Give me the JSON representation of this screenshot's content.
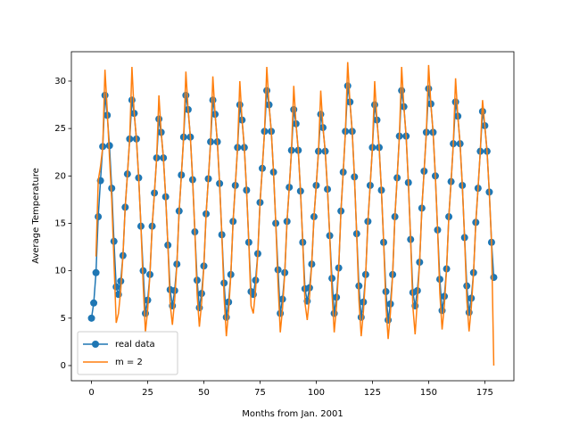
{
  "chart_data": {
    "type": "line",
    "xlabel": "Months from Jan. 2001",
    "ylabel": "Average Temperature",
    "x": [
      0,
      1,
      2,
      3,
      4,
      5,
      6,
      7,
      8,
      9,
      10,
      11,
      12,
      13,
      14,
      15,
      16,
      17,
      18,
      19,
      20,
      21,
      22,
      23,
      24,
      25,
      26,
      27,
      28,
      29,
      30,
      31,
      32,
      33,
      34,
      35,
      36,
      37,
      38,
      39,
      40,
      41,
      42,
      43,
      44,
      45,
      46,
      47,
      48,
      49,
      50,
      51,
      52,
      53,
      54,
      55,
      56,
      57,
      58,
      59,
      60,
      61,
      62,
      63,
      64,
      65,
      66,
      67,
      68,
      69,
      70,
      71,
      72,
      73,
      74,
      75,
      76,
      77,
      78,
      79,
      80,
      81,
      82,
      83,
      84,
      85,
      86,
      87,
      88,
      89,
      90,
      91,
      92,
      93,
      94,
      95,
      96,
      97,
      98,
      99,
      100,
      101,
      102,
      103,
      104,
      105,
      106,
      107,
      108,
      109,
      110,
      111,
      112,
      113,
      114,
      115,
      116,
      117,
      118,
      119,
      120,
      121,
      122,
      123,
      124,
      125,
      126,
      127,
      128,
      129,
      130,
      131,
      132,
      133,
      134,
      135,
      136,
      137,
      138,
      139,
      140,
      141,
      142,
      143,
      144,
      145,
      146,
      147,
      148,
      149,
      150,
      151,
      152,
      153,
      154,
      155,
      156,
      157,
      158,
      159,
      160,
      161,
      162,
      163,
      164,
      165,
      166,
      167,
      168,
      169,
      170,
      171,
      172,
      173,
      174,
      175,
      176,
      177,
      178,
      179
    ],
    "series": [
      {
        "name": "real data",
        "color": "#1f77b4",
        "marker": true,
        "values": [
          5,
          6.6,
          9.8,
          15.7,
          19.5,
          23.1,
          28.5,
          26.4,
          23.2,
          18.7,
          13.1,
          8.3,
          7.5,
          8.9,
          11.6,
          16.7,
          20.2,
          23.9,
          28,
          26.6,
          23.9,
          19.8,
          14.7,
          10,
          5.5,
          6.9,
          9.6,
          14.7,
          18.2,
          21.9,
          26,
          24.6,
          21.9,
          17.8,
          12.7,
          8,
          6.3,
          7.9,
          10.7,
          16.3,
          20.1,
          24.1,
          28.5,
          27,
          24.1,
          19.6,
          14.1,
          9,
          6.1,
          7.6,
          10.5,
          16,
          19.7,
          23.6,
          28,
          26.5,
          23.6,
          19.2,
          13.8,
          8.7,
          5.1,
          6.7,
          9.6,
          15.2,
          19,
          23,
          27.5,
          25.9,
          23,
          18.5,
          13,
          7.8,
          7.5,
          9,
          11.8,
          17.2,
          20.8,
          24.7,
          29,
          27.5,
          24.7,
          20.4,
          15,
          10.1,
          5.5,
          7,
          9.8,
          15.2,
          18.8,
          22.7,
          27,
          25.5,
          22.7,
          18.4,
          13,
          8.1,
          6.8,
          8.2,
          10.7,
          15.7,
          19,
          22.6,
          26.5,
          25.1,
          22.6,
          18.6,
          13.7,
          9.2,
          5.5,
          7.2,
          10.3,
          16.3,
          20.4,
          24.7,
          29.5,
          27.8,
          24.7,
          19.9,
          13.9,
          8.4,
          5.1,
          6.7,
          9.6,
          15.2,
          19,
          23,
          27.5,
          25.9,
          23,
          18.5,
          13,
          7.8,
          4.8,
          6.5,
          9.6,
          15.7,
          19.8,
          24.2,
          29,
          27.3,
          24.2,
          19.3,
          13.3,
          7.7,
          6.3,
          7.9,
          10.9,
          16.6,
          20.5,
          24.6,
          29.2,
          27.6,
          24.6,
          20,
          14.3,
          9.1,
          5.8,
          7.3,
          10.2,
          15.7,
          19.4,
          23.4,
          27.8,
          26.3,
          23.4,
          19,
          13.5,
          8.4,
          5.6,
          7.1,
          9.8,
          15.1,
          18.7,
          22.6,
          26.8,
          25.3,
          22.6,
          18.3,
          13,
          9.3
        ]
      },
      {
        "name": "m = 2",
        "color": "#ff7f0e",
        "marker": false,
        "values": [
          null,
          null,
          11.5,
          19.5,
          21,
          23,
          31.2,
          27,
          22,
          17.5,
          11,
          4.5,
          5.5,
          7.9,
          11.6,
          16.7,
          20.2,
          23.9,
          31.5,
          26.6,
          23.9,
          19.8,
          14.7,
          8.5,
          3.5,
          5.9,
          9.6,
          14.7,
          18.2,
          21.9,
          28.5,
          24.6,
          21.9,
          17.8,
          12.7,
          6.5,
          4.3,
          6.9,
          10.7,
          16.3,
          20.1,
          24.1,
          31,
          27,
          24.1,
          19.6,
          14.1,
          7.5,
          4.1,
          6.6,
          10.5,
          16,
          19.7,
          23.6,
          30.5,
          26.5,
          23.6,
          19.2,
          13.8,
          7.2,
          3.1,
          5.7,
          9.6,
          15.2,
          19,
          23,
          30,
          25.9,
          23,
          18.5,
          13,
          6.3,
          5.5,
          8,
          11.8,
          17.2,
          20.8,
          24.7,
          31.5,
          27.5,
          24.7,
          20.4,
          15,
          8.6,
          3.5,
          6,
          9.8,
          15.2,
          18.8,
          22.7,
          29.5,
          25.5,
          22.7,
          18.4,
          13,
          6.6,
          4.8,
          7.2,
          10.7,
          15.7,
          19,
          22.6,
          29,
          25.1,
          22.6,
          18.6,
          13.7,
          7.7,
          3.5,
          6.2,
          10.3,
          16.3,
          20.4,
          24.7,
          32,
          27.8,
          24.7,
          19.9,
          13.9,
          6.9,
          3.1,
          5.7,
          9.6,
          15.2,
          19,
          23,
          30,
          25.9,
          23,
          18.5,
          13,
          6.3,
          2.8,
          5.5,
          9.6,
          15.7,
          19.8,
          24.2,
          31.5,
          27.3,
          24.2,
          19.3,
          13.3,
          6.2,
          3.3,
          6.9,
          10.9,
          16.6,
          20.5,
          24.6,
          31.7,
          27.6,
          24.6,
          20,
          14.3,
          7.6,
          3.8,
          6.3,
          10.2,
          15.7,
          19.4,
          23.4,
          30.3,
          26.3,
          23.4,
          19,
          13.5,
          6.9,
          3.6,
          6.1,
          9.8,
          15.1,
          18.7,
          22.6,
          28,
          25.3,
          22.6,
          18.3,
          13,
          0
        ]
      }
    ],
    "xlim": [
      -8.95,
      187.95
    ],
    "xticks": [
      0,
      25,
      50,
      75,
      100,
      125,
      150,
      175
    ],
    "ylim": [
      -1.6,
      33.1
    ],
    "yticks": [
      0,
      5,
      10,
      15,
      20,
      25,
      30
    ],
    "legend": "lower left"
  }
}
